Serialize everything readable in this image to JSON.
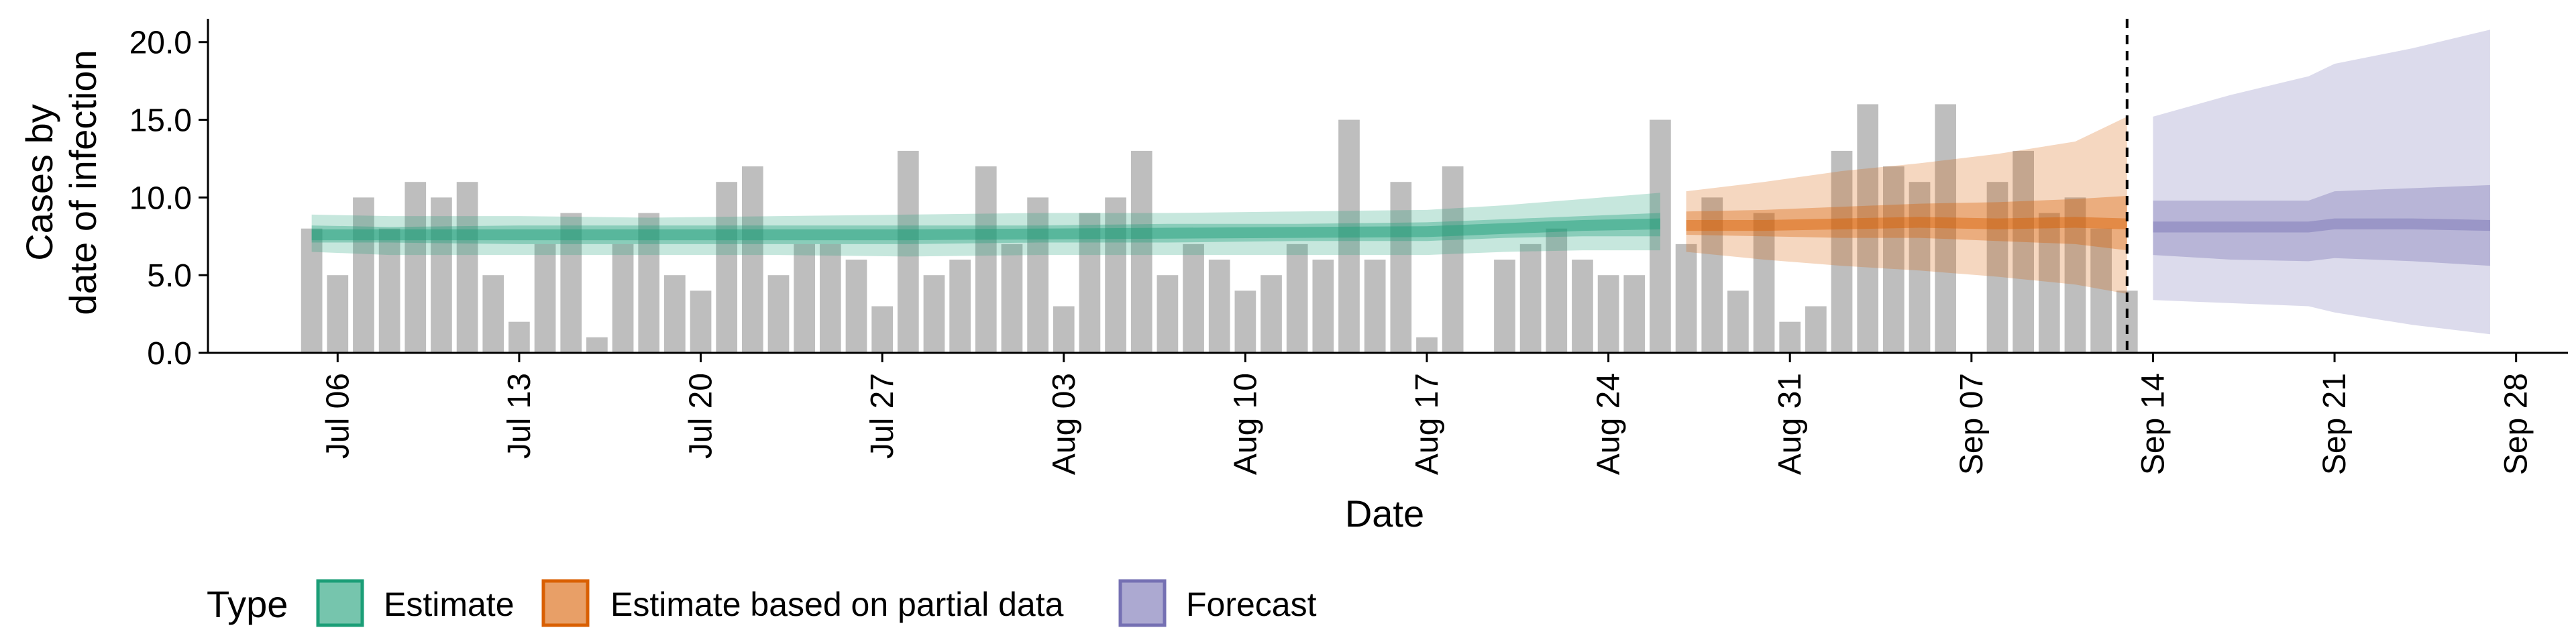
{
  "chart_data": {
    "type": "bar",
    "xlabel": "Date",
    "ylabel": [
      "Cases by",
      "date of infection"
    ],
    "ylim": [
      0,
      21.5
    ],
    "yticks": [
      "0.0",
      "5.0",
      "10.0",
      "15.0",
      "20.0"
    ],
    "ytick_values": [
      0,
      5,
      10,
      15,
      20
    ],
    "xrange": [
      "2021-07-01",
      "2021-09-30"
    ],
    "xticks": [
      {
        "date": "2021-07-06",
        "label": "Jul 06"
      },
      {
        "date": "2021-07-13",
        "label": "Jul 13"
      },
      {
        "date": "2021-07-20",
        "label": "Jul 20"
      },
      {
        "date": "2021-07-27",
        "label": "Jul 27"
      },
      {
        "date": "2021-08-03",
        "label": "Aug 03"
      },
      {
        "date": "2021-08-10",
        "label": "Aug 10"
      },
      {
        "date": "2021-08-17",
        "label": "Aug 17"
      },
      {
        "date": "2021-08-24",
        "label": "Aug 24"
      },
      {
        "date": "2021-08-31",
        "label": "Aug 31"
      },
      {
        "date": "2021-09-07",
        "label": "Sep 07"
      },
      {
        "date": "2021-09-14",
        "label": "Sep 14"
      },
      {
        "date": "2021-09-21",
        "label": "Sep 21"
      },
      {
        "date": "2021-09-28",
        "label": "Sep 28"
      }
    ],
    "reported_cases": {
      "start": "2021-07-05",
      "values": [
        8,
        5,
        10,
        8,
        11,
        10,
        11,
        5,
        2,
        7,
        9,
        1,
        7,
        9,
        5,
        4,
        11,
        12,
        5,
        7,
        7,
        6,
        3,
        13,
        5,
        6,
        12,
        7,
        10,
        3,
        9,
        10,
        13,
        5,
        7,
        6,
        4,
        5,
        7,
        6,
        15,
        6,
        11,
        1,
        12,
        null,
        6,
        7,
        8,
        6,
        5,
        5,
        15,
        7,
        10,
        4,
        9,
        2,
        3,
        13,
        16,
        12,
        11,
        16,
        0,
        11,
        13,
        9,
        10,
        8,
        4
      ],
      "color": "#bebebe"
    },
    "series": [
      {
        "name": "Estimate",
        "color": "#1b9e77",
        "dates": [
          "2021-07-05",
          "2021-07-08",
          "2021-07-13",
          "2021-07-18",
          "2021-07-23",
          "2021-07-28",
          "2021-08-02",
          "2021-08-07",
          "2021-08-12",
          "2021-08-17",
          "2021-08-20",
          "2021-08-23",
          "2021-08-26"
        ],
        "median": [
          7.6,
          7.6,
          7.6,
          7.6,
          7.6,
          7.6,
          7.65,
          7.7,
          7.75,
          7.8,
          8.0,
          8.2,
          8.3
        ],
        "inner": {
          "lower": [
            7.1,
            7.1,
            7.0,
            7.0,
            7.0,
            7.0,
            7.1,
            7.1,
            7.2,
            7.2,
            7.4,
            7.5,
            7.5
          ],
          "upper": [
            8.2,
            8.1,
            8.2,
            8.2,
            8.2,
            8.2,
            8.2,
            8.3,
            8.3,
            8.4,
            8.6,
            8.8,
            9.0
          ]
        },
        "outer": {
          "lower": [
            6.5,
            6.3,
            6.3,
            6.3,
            6.3,
            6.2,
            6.3,
            6.3,
            6.3,
            6.3,
            6.5,
            6.6,
            6.6
          ],
          "upper": [
            8.9,
            8.8,
            8.8,
            8.7,
            8.8,
            8.9,
            9.0,
            9.0,
            9.1,
            9.2,
            9.5,
            9.9,
            10.3
          ]
        }
      },
      {
        "name": "Estimate based on partial data",
        "color": "#d95f02",
        "dates": [
          "2021-08-27",
          "2021-08-30",
          "2021-09-02",
          "2021-09-05",
          "2021-09-08",
          "2021-09-11",
          "2021-09-13"
        ],
        "median": [
          8.2,
          8.2,
          8.3,
          8.4,
          8.3,
          8.4,
          8.3
        ],
        "inner": {
          "lower": [
            7.6,
            7.5,
            7.4,
            7.4,
            7.2,
            7.0,
            6.6
          ],
          "upper": [
            9.1,
            9.2,
            9.4,
            9.6,
            9.7,
            9.9,
            10.1
          ]
        },
        "outer": {
          "lower": [
            6.5,
            6.0,
            5.6,
            5.3,
            4.9,
            4.4,
            3.8
          ],
          "upper": [
            10.4,
            11.0,
            11.7,
            12.2,
            12.8,
            13.6,
            15.2
          ]
        }
      },
      {
        "name": "Forecast",
        "color": "#7570b3",
        "dates": [
          "2021-09-14",
          "2021-09-17",
          "2021-09-20",
          "2021-09-21",
          "2021-09-24",
          "2021-09-27"
        ],
        "median": [
          8.1,
          8.1,
          8.1,
          8.3,
          8.3,
          8.2
        ],
        "inner": {
          "lower": [
            6.3,
            6.0,
            5.9,
            6.1,
            5.9,
            5.6
          ],
          "upper": [
            9.8,
            9.8,
            9.8,
            10.4,
            10.6,
            10.8
          ]
        },
        "outer": {
          "lower": [
            3.4,
            3.2,
            3.0,
            2.6,
            1.8,
            1.2
          ],
          "upper": [
            15.2,
            16.6,
            17.8,
            18.6,
            19.6,
            20.8
          ]
        }
      }
    ],
    "vline": {
      "date": "2021-09-13",
      "style": "dashed"
    },
    "legend": {
      "title": "Type",
      "position": "bottom-left",
      "items": [
        "Estimate",
        "Estimate based on partial data",
        "Forecast"
      ]
    },
    "grid": false
  }
}
